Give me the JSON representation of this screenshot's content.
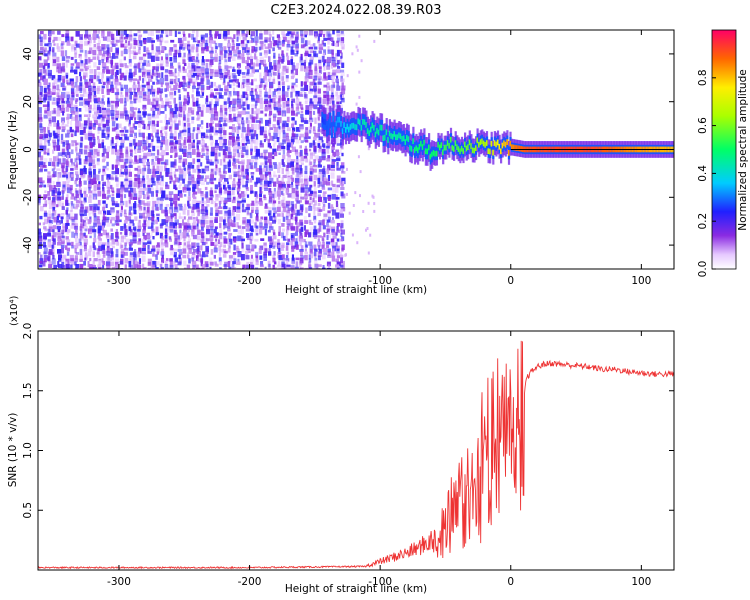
{
  "title": "C2E3.2024.022.08.39.R03",
  "chart_data": [
    {
      "type": "heatmap",
      "xlabel": "Height of straight line (km)",
      "ylabel": "Frequency (Hz)",
      "xlim": [
        -362,
        125
      ],
      "ylim": [
        -50,
        50
      ],
      "xticks": [
        -300,
        -200,
        -100,
        0,
        100
      ],
      "xtick_labels": [
        "-300",
        "-200",
        "-100",
        "0",
        "100"
      ],
      "yticks": [
        -40,
        -20,
        0,
        20,
        40
      ],
      "ytick_labels": [
        "-40",
        "-20",
        "0",
        "20",
        "40"
      ],
      "colorbar": {
        "label": "Normalized spectral amplitude",
        "range": [
          0,
          1
        ],
        "ticks": [
          0.0,
          0.2,
          0.4,
          0.6,
          0.8
        ],
        "tick_labels": [
          "0.0",
          "0.2",
          "0.4",
          "0.6",
          "0.8"
        ]
      },
      "noise_region": {
        "x": [
          -362,
          -130
        ],
        "y": [
          -50,
          50
        ],
        "amplitude": [
          0.05,
          0.3
        ]
      },
      "signal_track": {
        "x": [
          -145,
          -130,
          -120,
          -110,
          -100,
          -90,
          -80,
          -70,
          -60,
          -50,
          -40,
          -30,
          -20,
          -10,
          0,
          10,
          30,
          60,
          90,
          125
        ],
        "freq": [
          11,
          10,
          11,
          9,
          7,
          5,
          3,
          1,
          -1,
          2,
          1,
          2,
          1,
          1,
          1,
          0,
          0,
          0,
          0,
          0
        ],
        "amplitude": [
          0.25,
          0.35,
          0.4,
          0.45,
          0.45,
          0.45,
          0.45,
          0.5,
          0.5,
          0.55,
          0.55,
          0.6,
          0.65,
          0.75,
          0.85,
          0.9,
          0.92,
          0.92,
          0.85,
          0.8
        ]
      },
      "grid": false
    },
    {
      "type": "line",
      "xlabel": "Height of straight line (km)",
      "ylabel": "SNR (10 * v/v)",
      "y_multiplier": "(x10⁴)",
      "xlim": [
        -362,
        125
      ],
      "ylim": [
        0,
        2.0
      ],
      "xticks": [
        -300,
        -200,
        -100,
        0,
        100
      ],
      "xtick_labels": [
        "-300",
        "-200",
        "-100",
        "0",
        "100"
      ],
      "yticks": [
        0.5,
        1.0,
        1.5,
        2.0
      ],
      "ytick_labels": [
        "0.5",
        "1.0",
        "1.5",
        "2.0"
      ],
      "grid": false,
      "series": [
        {
          "color": "#ee3333",
          "x": [
            -362,
            -300,
            -200,
            -110,
            -100,
            -90,
            -80,
            -70,
            -60,
            -50,
            -45,
            -40,
            -35,
            -30,
            -25,
            -20,
            -15,
            -10,
            -5,
            0,
            5,
            8,
            10,
            12,
            15,
            20,
            25,
            30,
            40,
            50,
            60,
            70,
            80,
            90,
            100,
            110,
            125
          ],
          "values": [
            0.02,
            0.02,
            0.02,
            0.03,
            0.06,
            0.09,
            0.12,
            0.16,
            0.22,
            0.3,
            0.4,
            0.5,
            0.55,
            0.6,
            0.68,
            0.75,
            0.85,
            0.9,
            0.95,
            1.05,
            1.2,
            1.35,
            1.45,
            1.6,
            1.65,
            1.7,
            1.72,
            1.73,
            1.72,
            1.71,
            1.7,
            1.68,
            1.68,
            1.66,
            1.65,
            1.64,
            1.64
          ],
          "noise_envelope": {
            "x": [
              -60,
              -40,
              -30,
              -20,
              -10,
              0,
              10
            ],
            "upper": [
              0.45,
              0.9,
              1.1,
              1.6,
              1.8,
              1.7,
              2.0
            ]
          }
        }
      ]
    }
  ]
}
